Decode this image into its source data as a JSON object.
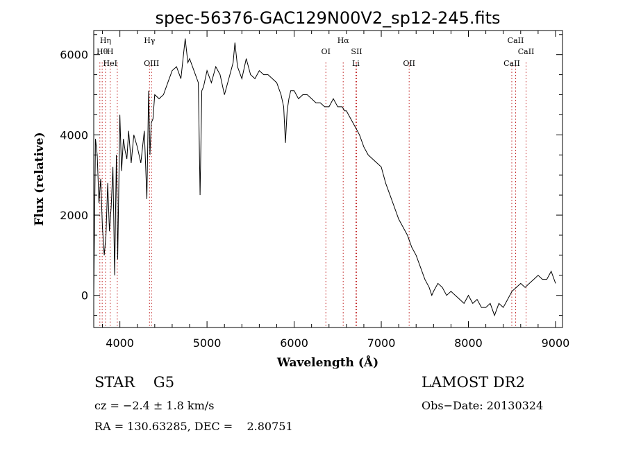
{
  "chart_data": {
    "type": "line",
    "title": "spec-56376-GAC129N00V2_sp12-245.fits",
    "xlabel": "Wavelength (Å)",
    "ylabel": "Flux (relative)",
    "xlim": [
      3700,
      9080
    ],
    "ylim": [
      -800,
      6600
    ],
    "xticks": [
      4000,
      5000,
      6000,
      7000,
      8000,
      9000
    ],
    "yticks": [
      0,
      2000,
      4000,
      6000
    ],
    "grid": false,
    "series": [
      {
        "x": [
          3700,
          3720,
          3740,
          3760,
          3780,
          3800,
          3820,
          3840,
          3860,
          3880,
          3900,
          3920,
          3940,
          3960,
          3975,
          3990,
          4000,
          4020,
          4040,
          4060,
          4080,
          4100,
          4130,
          4160,
          4200,
          4240,
          4280,
          4310,
          4330,
          4345,
          4360,
          4380,
          4400,
          4450,
          4500,
          4550,
          4600,
          4650,
          4700,
          4750,
          4780,
          4800,
          4850,
          4900,
          4920,
          4940,
          4960,
          5000,
          5050,
          5100,
          5150,
          5200,
          5250,
          5300,
          5320,
          5350,
          5400,
          5450,
          5500,
          5550,
          5600,
          5650,
          5700,
          5750,
          5800,
          5850,
          5880,
          5900,
          5920,
          5940,
          5960,
          6000,
          6050,
          6100,
          6150,
          6200,
          6250,
          6300,
          6350,
          6400,
          6450,
          6500,
          6550,
          6580,
          6600,
          6650,
          6700,
          6750,
          6800,
          6850,
          6900,
          6950,
          7000,
          7050,
          7100,
          7150,
          7200,
          7250,
          7300,
          7350,
          7400,
          7450,
          7500,
          7550,
          7580,
          7600,
          7650,
          7700,
          7750,
          7800,
          7850,
          7900,
          7950,
          8000,
          8050,
          8100,
          8150,
          8200,
          8250,
          8300,
          8350,
          8400,
          8450,
          8500,
          8550,
          8600,
          8650,
          8700,
          8750,
          8800,
          8850,
          8900,
          8950,
          9000
        ],
        "y": [
          0,
          3900,
          3500,
          2300,
          2900,
          1700,
          1000,
          1500,
          2800,
          1600,
          2200,
          3200,
          500,
          3500,
          900,
          3100,
          4500,
          3100,
          3900,
          3600,
          3400,
          4100,
          3300,
          4000,
          3700,
          3300,
          4100,
          2400,
          5100,
          3500,
          4300,
          4400,
          5000,
          4900,
          5000,
          5300,
          5600,
          5700,
          5400,
          6400,
          5800,
          5900,
          5600,
          5300,
          2500,
          5100,
          5200,
          5600,
          5300,
          5700,
          5500,
          5000,
          5400,
          5800,
          6300,
          5700,
          5400,
          5900,
          5500,
          5400,
          5600,
          5500,
          5500,
          5400,
          5300,
          5000,
          4700,
          3800,
          4600,
          4900,
          5100,
          5100,
          4900,
          5000,
          5000,
          4900,
          4800,
          4800,
          4700,
          4700,
          4900,
          4700,
          4700,
          4600,
          4600,
          4400,
          4200,
          4000,
          3700,
          3500,
          3400,
          3300,
          3200,
          2800,
          2500,
          2200,
          1900,
          1700,
          1500,
          1200,
          1000,
          700,
          400,
          200,
          0,
          100,
          300,
          200,
          0,
          100,
          0,
          -100,
          -200,
          0,
          -200,
          -100,
          -300,
          -300,
          -200,
          -500,
          -200,
          -300,
          -100,
          100,
          200,
          300,
          200,
          300,
          400,
          500,
          400,
          400,
          600,
          300
        ],
        "color": "#000000"
      }
    ],
    "line_markers": [
      {
        "label": "Hη",
        "x": 3835,
        "row": 0
      },
      {
        "label": "Hθ",
        "x": 3797,
        "row": 1
      },
      {
        "label": "H",
        "x": 3889,
        "row": 1
      },
      {
        "label": "HeI",
        "x": 3889,
        "row": 2
      },
      {
        "label": "Hγ",
        "x": 4340,
        "row": 0
      },
      {
        "label": "OIII",
        "x": 4363,
        "row": 2
      },
      {
        "label": "OI",
        "x": 6364,
        "row": 1
      },
      {
        "label": "Hα",
        "x": 6563,
        "row": 0
      },
      {
        "label": "SII",
        "x": 6717,
        "row": 1
      },
      {
        "label": "Li",
        "x": 6708,
        "row": 2
      },
      {
        "label": "OII",
        "x": 7320,
        "row": 2
      },
      {
        "label": "CaII",
        "x": 8542,
        "row": 0
      },
      {
        "label": "CaII",
        "x": 8662,
        "row": 1
      },
      {
        "label": "CaII",
        "x": 8498,
        "row": 2
      }
    ],
    "dotted_lines_x": [
      3770,
      3797,
      3835,
      3889,
      3970,
      4340,
      4363,
      6364,
      6563,
      6708,
      6717,
      7320,
      8498,
      8542,
      8662
    ]
  },
  "footer": {
    "object_type": "STAR    G5",
    "survey": "LAMOST DR2",
    "redshift": "cz = −2.4 ± 1.8 km/s",
    "obs_date": "Obs−Date: 20130324",
    "coords": "RA = 130.63285, DEC =    2.80751"
  }
}
